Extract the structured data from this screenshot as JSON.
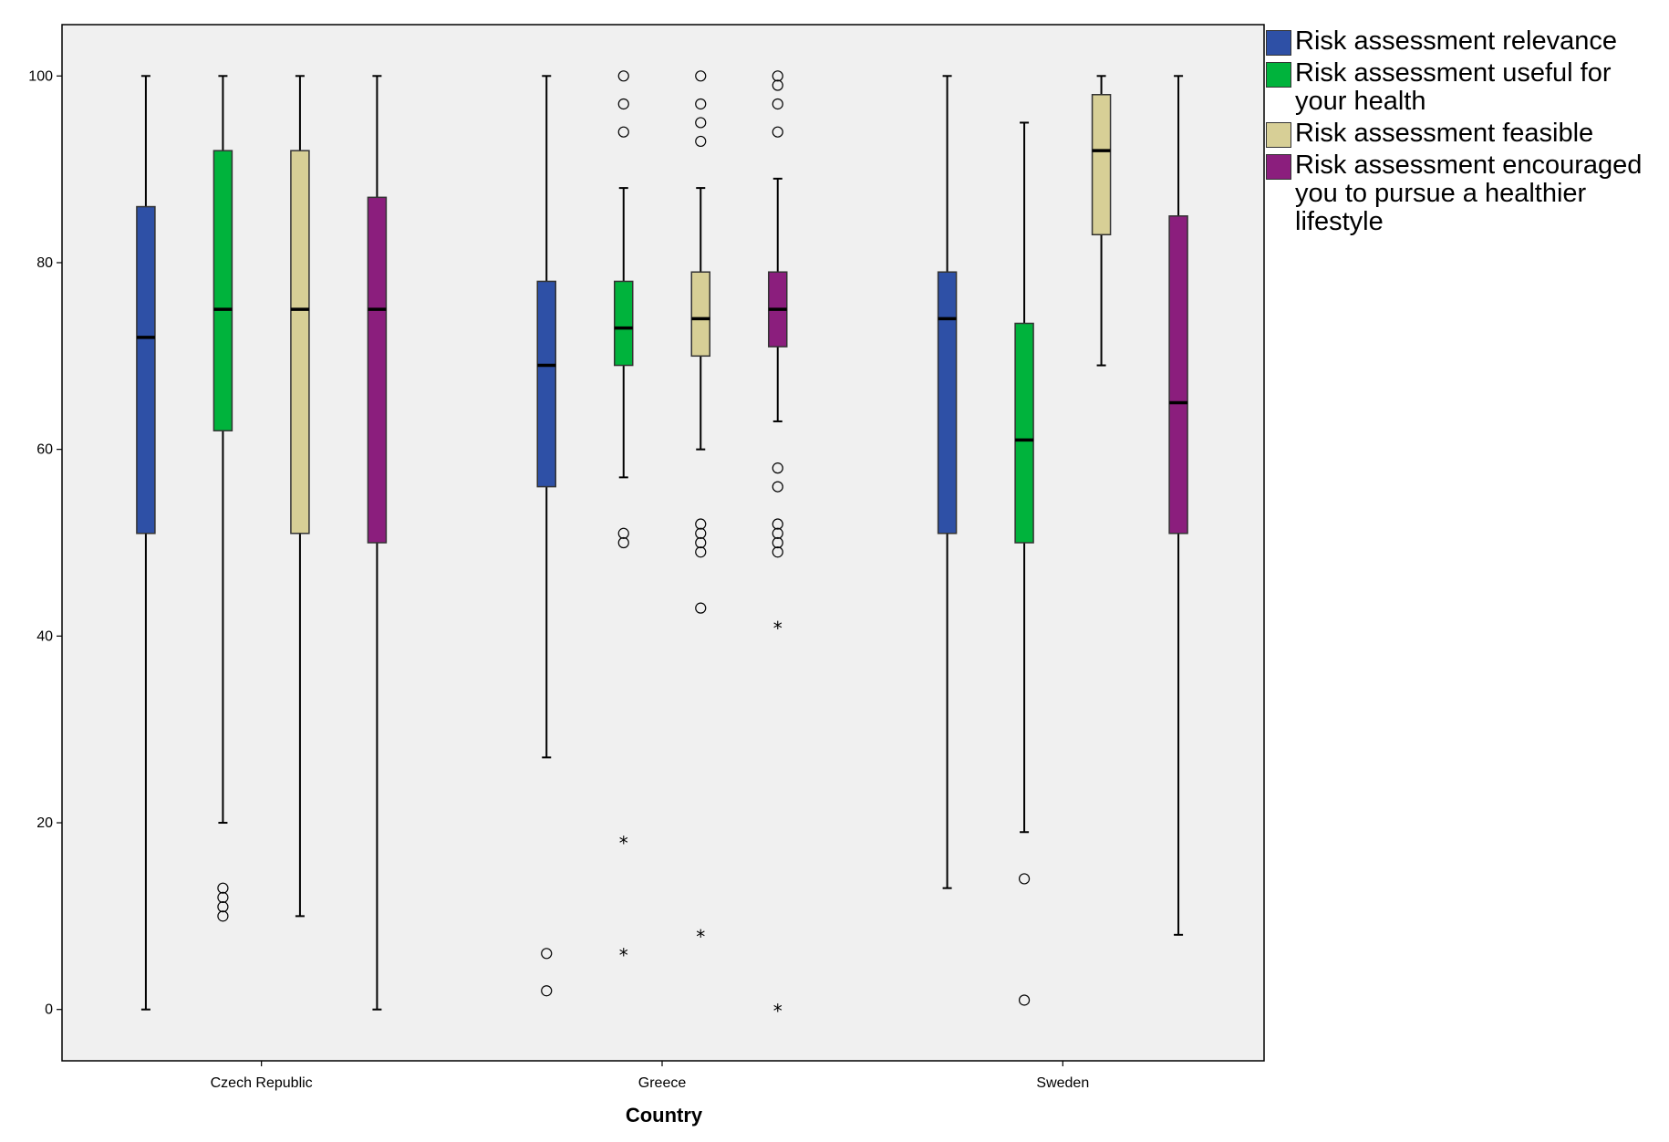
{
  "chart_data": {
    "type": "boxplot",
    "title": "",
    "xlabel": "Country",
    "ylabel": "",
    "ylim": [
      -5.5,
      105.5
    ],
    "yticks": [
      0,
      20,
      40,
      60,
      80,
      100
    ],
    "categories": [
      "Czech Republic",
      "Greece",
      "Sweden"
    ],
    "legend_position": "right",
    "series": [
      {
        "name": "Risk assessment relevance",
        "color": "#2e50a6",
        "boxes": [
          {
            "category": "Czech Republic",
            "min": 0,
            "q1": 51,
            "median": 72,
            "q3": 86,
            "max": 100,
            "outliers": [],
            "extremes": []
          },
          {
            "category": "Greece",
            "min": 27,
            "q1": 56,
            "median": 69,
            "q3": 78,
            "max": 100,
            "outliers": [
              6,
              2
            ],
            "extremes": []
          },
          {
            "category": "Sweden",
            "min": 13,
            "q1": 51,
            "median": 74,
            "q3": 79,
            "max": 100,
            "outliers": [],
            "extremes": []
          }
        ]
      },
      {
        "name": "Risk assessment useful for your health",
        "color": "#00b33c",
        "boxes": [
          {
            "category": "Czech Republic",
            "min": 20,
            "q1": 62,
            "median": 75,
            "q3": 92,
            "max": 100,
            "outliers": [
              13,
              12,
              11,
              10
            ],
            "extremes": []
          },
          {
            "category": "Greece",
            "min": 57,
            "q1": 69,
            "median": 73,
            "q3": 78,
            "max": 88,
            "outliers": [
              100,
              97,
              94,
              51,
              50
            ],
            "extremes": [
              18,
              6
            ]
          },
          {
            "category": "Sweden",
            "min": 19,
            "q1": 50,
            "median": 61,
            "q3": 73.5,
            "max": 95,
            "outliers": [
              14,
              1
            ],
            "extremes": []
          }
        ]
      },
      {
        "name": "Risk assessment feasible",
        "color": "#d7cf96",
        "boxes": [
          {
            "category": "Czech Republic",
            "min": 10,
            "q1": 51,
            "median": 75,
            "q3": 92,
            "max": 100,
            "outliers": [],
            "extremes": []
          },
          {
            "category": "Greece",
            "min": 60,
            "q1": 70,
            "median": 74,
            "q3": 79,
            "max": 88,
            "outliers": [
              100,
              97,
              95,
              93,
              52,
              51,
              50,
              49,
              43
            ],
            "extremes": [
              8
            ]
          },
          {
            "category": "Sweden",
            "min": 69,
            "q1": 83,
            "median": 92,
            "q3": 98,
            "max": 100,
            "outliers": [],
            "extremes": []
          }
        ]
      },
      {
        "name": "Risk assessment encouraged you to pursue a healthier lifestyle",
        "color": "#8b1e7d",
        "boxes": [
          {
            "category": "Czech Republic",
            "min": 0,
            "q1": 50,
            "median": 75,
            "q3": 87,
            "max": 100,
            "outliers": [],
            "extremes": []
          },
          {
            "category": "Greece",
            "min": 63,
            "q1": 71,
            "median": 75,
            "q3": 79,
            "max": 89,
            "outliers": [
              100,
              99,
              97,
              94,
              58,
              56,
              52,
              51,
              50,
              49
            ],
            "extremes": [
              41,
              0
            ]
          },
          {
            "category": "Sweden",
            "min": 8,
            "q1": 51,
            "median": 65,
            "q3": 85,
            "max": 100,
            "outliers": [],
            "extremes": []
          }
        ]
      }
    ]
  }
}
